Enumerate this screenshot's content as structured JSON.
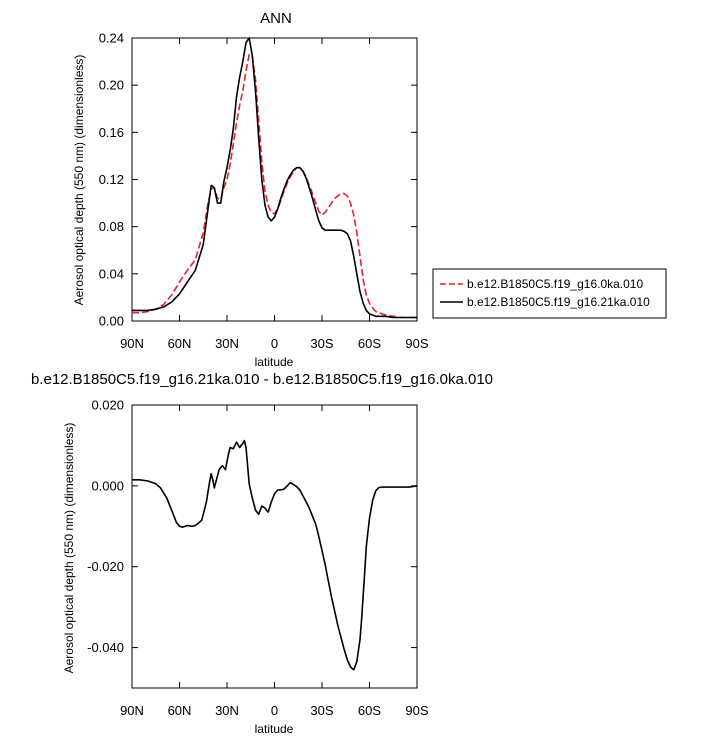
{
  "chart_data": [
    {
      "type": "line",
      "title": "ANN",
      "xlabel": "latitude",
      "ylabel": "Aerosol optical depth (550 nm) (dimensionless)",
      "xlim": [
        90,
        -90
      ],
      "ylim": [
        0,
        0.24
      ],
      "x_ticks": [
        90,
        60,
        30,
        0,
        -30,
        -60,
        -90
      ],
      "x_tick_labels": [
        "90N",
        "60N",
        "30N",
        "0",
        "30S",
        "60S",
        "90S"
      ],
      "y_ticks": [
        0,
        0.04,
        0.08,
        0.12,
        0.16,
        0.2,
        0.24
      ],
      "y_tick_labels": [
        "0.00",
        "0.04",
        "0.08",
        "0.12",
        "0.16",
        "0.20",
        "0.24"
      ],
      "legend_position": "right",
      "series": [
        {
          "name": "b.e12.B1850C5.f19_g16.0ka.010",
          "color": "#e8212c",
          "dash": "dashed",
          "x": [
            90,
            85,
            80,
            75,
            70,
            65,
            60,
            55,
            50,
            45,
            42,
            40,
            38,
            36,
            34,
            32,
            30,
            28,
            26,
            24,
            22,
            20,
            18,
            16,
            14,
            12,
            10,
            8,
            6,
            4,
            2,
            0,
            -2,
            -4,
            -6,
            -8,
            -10,
            -12,
            -14,
            -16,
            -18,
            -20,
            -22,
            -24,
            -26,
            -28,
            -30,
            -32,
            -34,
            -36,
            -38,
            -40,
            -42,
            -44,
            -46,
            -48,
            -50,
            -52,
            -54,
            -56,
            -58,
            -60,
            -62,
            -64,
            -66,
            -68,
            -70,
            -75,
            -80,
            -85,
            -90
          ],
          "y": [
            0.007,
            0.007,
            0.008,
            0.01,
            0.014,
            0.022,
            0.033,
            0.043,
            0.052,
            0.075,
            0.1,
            0.112,
            0.113,
            0.104,
            0.103,
            0.113,
            0.12,
            0.133,
            0.15,
            0.168,
            0.183,
            0.195,
            0.212,
            0.226,
            0.225,
            0.205,
            0.17,
            0.135,
            0.11,
            0.098,
            0.092,
            0.091,
            0.095,
            0.102,
            0.11,
            0.117,
            0.122,
            0.127,
            0.13,
            0.13,
            0.127,
            0.122,
            0.115,
            0.108,
            0.1,
            0.093,
            0.09,
            0.092,
            0.096,
            0.1,
            0.104,
            0.106,
            0.108,
            0.108,
            0.106,
            0.1,
            0.09,
            0.075,
            0.055,
            0.035,
            0.022,
            0.015,
            0.011,
            0.008,
            0.007,
            0.006,
            0.005,
            0.004,
            0.003,
            0.003,
            0.003
          ]
        },
        {
          "name": "b.e12.B1850C5.f19_g16.21ka.010",
          "color": "#000000",
          "dash": "solid",
          "x": [
            90,
            85,
            80,
            75,
            70,
            65,
            60,
            55,
            50,
            45,
            42,
            40,
            38,
            36,
            34,
            32,
            30,
            28,
            26,
            24,
            22,
            20,
            18,
            16,
            14,
            12,
            10,
            8,
            6,
            4,
            2,
            0,
            -2,
            -4,
            -6,
            -8,
            -10,
            -12,
            -14,
            -16,
            -18,
            -20,
            -22,
            -24,
            -26,
            -28,
            -30,
            -32,
            -34,
            -36,
            -38,
            -40,
            -42,
            -44,
            -46,
            -48,
            -50,
            -52,
            -54,
            -56,
            -58,
            -60,
            -62,
            -64,
            -66,
            -68,
            -70,
            -75,
            -80,
            -85,
            -90
          ],
          "y": [
            0.009,
            0.009,
            0.009,
            0.01,
            0.012,
            0.016,
            0.023,
            0.033,
            0.043,
            0.065,
            0.095,
            0.115,
            0.113,
            0.1,
            0.1,
            0.118,
            0.13,
            0.145,
            0.163,
            0.19,
            0.207,
            0.22,
            0.236,
            0.24,
            0.225,
            0.195,
            0.155,
            0.12,
            0.098,
            0.088,
            0.085,
            0.088,
            0.095,
            0.104,
            0.112,
            0.119,
            0.124,
            0.128,
            0.13,
            0.13,
            0.127,
            0.121,
            0.113,
            0.104,
            0.094,
            0.085,
            0.079,
            0.077,
            0.077,
            0.077,
            0.077,
            0.077,
            0.077,
            0.076,
            0.074,
            0.068,
            0.055,
            0.04,
            0.025,
            0.015,
            0.009,
            0.006,
            0.005,
            0.004,
            0.004,
            0.004,
            0.004,
            0.003,
            0.003,
            0.003,
            0.003
          ]
        }
      ]
    },
    {
      "type": "line",
      "title": "b.e12.B1850C5.f19_g16.21ka.010 - b.e12.B1850C5.f19_g16.0ka.010",
      "xlabel": "latitude",
      "ylabel": "Aerosol optical depth (550 nm) (dimensionless)",
      "xlim": [
        90,
        -90
      ],
      "ylim": [
        -0.05,
        0.02
      ],
      "x_ticks": [
        90,
        60,
        30,
        0,
        -30,
        -60,
        -90
      ],
      "x_tick_labels": [
        "90N",
        "60N",
        "30N",
        "0",
        "30S",
        "60S",
        "90S"
      ],
      "y_ticks": [
        -0.04,
        -0.02,
        0,
        0.02
      ],
      "y_tick_labels": [
        "-0.040",
        "-0.020",
        "0.000",
        "0.020"
      ],
      "series": [
        {
          "color": "#000000",
          "dash": "solid",
          "x": [
            90,
            85,
            80,
            75,
            72,
            68,
            65,
            62,
            60,
            58,
            55,
            52,
            50,
            48,
            46,
            45,
            43,
            41,
            40,
            39,
            38,
            37,
            35,
            33,
            31,
            29,
            28,
            26,
            24,
            22,
            20,
            19,
            18,
            16,
            14,
            12,
            10,
            8,
            6,
            4,
            2,
            0,
            -2,
            -4,
            -6,
            -8,
            -10,
            -12,
            -14,
            -16,
            -18,
            -20,
            -22,
            -24,
            -26,
            -28,
            -30,
            -32,
            -34,
            -36,
            -38,
            -40,
            -42,
            -44,
            -46,
            -48,
            -50,
            -52,
            -54,
            -55,
            -56,
            -57,
            -58,
            -60,
            -62,
            -64,
            -66,
            -68,
            -70,
            -75,
            -80,
            -85,
            -90
          ],
          "y": [
            0.0015,
            0.0015,
            0.0012,
            0.0005,
            -0.0005,
            -0.003,
            -0.006,
            -0.009,
            -0.01,
            -0.0102,
            -0.0098,
            -0.01,
            -0.0098,
            -0.0092,
            -0.0085,
            -0.007,
            -0.004,
            0.001,
            0.003,
            0.0015,
            -0.0005,
            0.001,
            0.004,
            0.005,
            0.004,
            0.008,
            0.0095,
            0.0092,
            0.0108,
            0.0095,
            0.0105,
            0.0112,
            0.0095,
            0.0005,
            -0.003,
            -0.006,
            -0.007,
            -0.005,
            -0.0055,
            -0.0065,
            -0.004,
            -0.002,
            -0.001,
            -0.001,
            -0.0008,
            0,
            0.0008,
            0.0003,
            -0.0002,
            -0.001,
            -0.0025,
            -0.004,
            -0.0055,
            -0.0075,
            -0.0095,
            -0.0125,
            -0.016,
            -0.0195,
            -0.0235,
            -0.0275,
            -0.031,
            -0.0345,
            -0.0375,
            -0.0405,
            -0.043,
            -0.0448,
            -0.0455,
            -0.0435,
            -0.038,
            -0.033,
            -0.027,
            -0.021,
            -0.015,
            -0.008,
            -0.0035,
            -0.0012,
            -0.0004,
            -0.0003,
            -0.0003,
            -0.0003,
            -0.0003,
            -0.0003,
            0
          ]
        }
      ]
    }
  ]
}
